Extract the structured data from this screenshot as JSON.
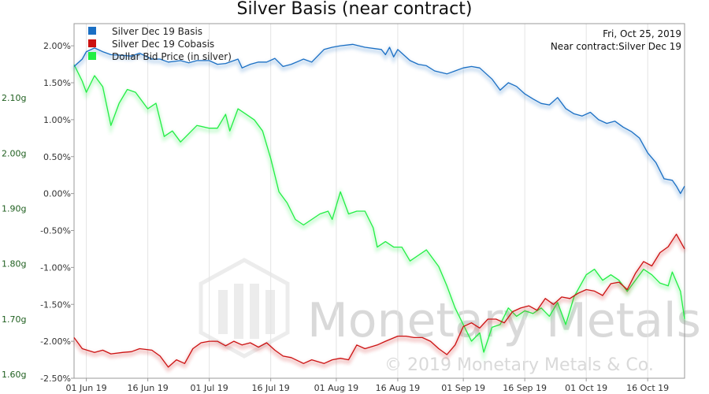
{
  "chart_data": {
    "type": "line",
    "title": "Silver Basis (near contract)",
    "annotation_date": "Fri, Oct 25, 2019",
    "annotation_contract": "Near contract:Silver Dec 19",
    "watermark_brand": "Monetary Metals",
    "watermark_copyright": "© 2019 Monetary Metals & Co.",
    "x_range": [
      "2019-05-29",
      "2019-10-25"
    ],
    "x_ticks": [
      {
        "date": "2019-06-01",
        "label": "01 Jun 19"
      },
      {
        "date": "2019-06-16",
        "label": "16 Jun 19"
      },
      {
        "date": "2019-07-01",
        "label": "01 Jul 19"
      },
      {
        "date": "2019-07-16",
        "label": "16 Jul 19"
      },
      {
        "date": "2019-08-01",
        "label": "01 Aug 19"
      },
      {
        "date": "2019-08-16",
        "label": "16 Aug 19"
      },
      {
        "date": "2019-09-01",
        "label": "01 Sep 19"
      },
      {
        "date": "2019-09-16",
        "label": "16 Sep 19"
      },
      {
        "date": "2019-10-01",
        "label": "01 Oct 19"
      },
      {
        "date": "2019-10-16",
        "label": "16 Oct 19"
      }
    ],
    "y_right": {
      "unit": "%",
      "range": [
        -2.5,
        2.3
      ],
      "ticks": [
        2.0,
        1.5,
        1.0,
        0.5,
        0.0,
        -0.5,
        -1.0,
        -1.5,
        -2.0,
        -2.5
      ],
      "tick_labels": [
        "2.00%",
        "1.50%",
        "1.00%",
        "0.50%",
        "0.00%",
        "-0.50%",
        "-1.00%",
        "-1.50%",
        "-2.00%",
        "-2.50%"
      ]
    },
    "y_left": {
      "unit": "g",
      "range": [
        1.593,
        2.234
      ],
      "ticks": [
        2.1,
        2.0,
        1.9,
        1.8,
        1.7,
        1.6
      ],
      "tick_labels": [
        "2.10g",
        "2.00g",
        "1.90g",
        "1.80g",
        "1.70g",
        "1.60g"
      ]
    },
    "legend_position": "top-left",
    "grid": "vertical",
    "series": [
      {
        "name": "Silver Dec 19 Basis",
        "color": "#1a6fc4",
        "axis": "right",
        "points": [
          [
            "2019-05-29",
            1.72
          ],
          [
            "2019-05-31",
            1.82
          ],
          [
            "2019-06-01",
            1.92
          ],
          [
            "2019-06-03",
            1.97
          ],
          [
            "2019-06-05",
            1.92
          ],
          [
            "2019-06-07",
            1.88
          ],
          [
            "2019-06-10",
            1.87
          ],
          [
            "2019-06-12",
            1.86
          ],
          [
            "2019-06-14",
            1.9
          ],
          [
            "2019-06-17",
            1.82
          ],
          [
            "2019-06-19",
            1.82
          ],
          [
            "2019-06-21",
            1.78
          ],
          [
            "2019-06-24",
            1.8
          ],
          [
            "2019-06-26",
            1.77
          ],
          [
            "2019-06-28",
            1.8
          ],
          [
            "2019-07-01",
            1.8
          ],
          [
            "2019-07-03",
            1.75
          ],
          [
            "2019-07-05",
            1.76
          ],
          [
            "2019-07-08",
            1.82
          ],
          [
            "2019-07-09",
            1.7
          ],
          [
            "2019-07-11",
            1.75
          ],
          [
            "2019-07-13",
            1.78
          ],
          [
            "2019-07-15",
            1.78
          ],
          [
            "2019-07-17",
            1.83
          ],
          [
            "2019-07-19",
            1.72
          ],
          [
            "2019-07-21",
            1.75
          ],
          [
            "2019-07-24",
            1.82
          ],
          [
            "2019-07-26",
            1.78
          ],
          [
            "2019-07-29",
            1.95
          ],
          [
            "2019-07-31",
            1.98
          ],
          [
            "2019-08-02",
            2.0
          ],
          [
            "2019-08-05",
            2.02
          ],
          [
            "2019-08-08",
            1.98
          ],
          [
            "2019-08-12",
            1.95
          ],
          [
            "2019-08-13",
            1.88
          ],
          [
            "2019-08-14",
            1.98
          ],
          [
            "2019-08-15",
            1.85
          ],
          [
            "2019-08-16",
            1.95
          ],
          [
            "2019-08-19",
            1.8
          ],
          [
            "2019-08-21",
            1.75
          ],
          [
            "2019-08-23",
            1.73
          ],
          [
            "2019-08-25",
            1.66
          ],
          [
            "2019-08-28",
            1.62
          ],
          [
            "2019-08-30",
            1.66
          ],
          [
            "2019-09-01",
            1.7
          ],
          [
            "2019-09-03",
            1.72
          ],
          [
            "2019-09-05",
            1.7
          ],
          [
            "2019-09-08",
            1.55
          ],
          [
            "2019-09-10",
            1.4
          ],
          [
            "2019-09-12",
            1.5
          ],
          [
            "2019-09-14",
            1.45
          ],
          [
            "2019-09-16",
            1.35
          ],
          [
            "2019-09-18",
            1.28
          ],
          [
            "2019-09-20",
            1.22
          ],
          [
            "2019-09-22",
            1.2
          ],
          [
            "2019-09-24",
            1.3
          ],
          [
            "2019-09-26",
            1.15
          ],
          [
            "2019-09-28",
            1.08
          ],
          [
            "2019-09-30",
            1.05
          ],
          [
            "2019-10-02",
            1.1
          ],
          [
            "2019-10-04",
            1.0
          ],
          [
            "2019-10-06",
            0.95
          ],
          [
            "2019-10-08",
            0.98
          ],
          [
            "2019-10-10",
            0.9
          ],
          [
            "2019-10-12",
            0.84
          ],
          [
            "2019-10-14",
            0.75
          ],
          [
            "2019-10-16",
            0.55
          ],
          [
            "2019-10-18",
            0.42
          ],
          [
            "2019-10-20",
            0.2
          ],
          [
            "2019-10-22",
            0.18
          ],
          [
            "2019-10-23",
            0.1
          ],
          [
            "2019-10-24",
            0.0
          ],
          [
            "2019-10-25",
            0.1
          ]
        ]
      },
      {
        "name": "Silver Dec 19 Cobasis",
        "color": "#cc1111",
        "axis": "right",
        "points": [
          [
            "2019-05-29",
            -1.95
          ],
          [
            "2019-05-31",
            -2.1
          ],
          [
            "2019-06-03",
            -2.15
          ],
          [
            "2019-06-05",
            -2.12
          ],
          [
            "2019-06-07",
            -2.17
          ],
          [
            "2019-06-10",
            -2.15
          ],
          [
            "2019-06-12",
            -2.14
          ],
          [
            "2019-06-14",
            -2.1
          ],
          [
            "2019-06-17",
            -2.12
          ],
          [
            "2019-06-19",
            -2.2
          ],
          [
            "2019-06-21",
            -2.35
          ],
          [
            "2019-06-23",
            -2.25
          ],
          [
            "2019-06-25",
            -2.3
          ],
          [
            "2019-06-27",
            -2.1
          ],
          [
            "2019-06-29",
            -2.02
          ],
          [
            "2019-07-01",
            -2.0
          ],
          [
            "2019-07-03",
            -2.0
          ],
          [
            "2019-07-05",
            -2.06
          ],
          [
            "2019-07-07",
            -2.0
          ],
          [
            "2019-07-09",
            -2.05
          ],
          [
            "2019-07-11",
            -2.02
          ],
          [
            "2019-07-13",
            -2.08
          ],
          [
            "2019-07-15",
            -2.02
          ],
          [
            "2019-07-17",
            -2.12
          ],
          [
            "2019-07-19",
            -2.2
          ],
          [
            "2019-07-21",
            -2.22
          ],
          [
            "2019-07-24",
            -2.3
          ],
          [
            "2019-07-26",
            -2.25
          ],
          [
            "2019-07-29",
            -2.3
          ],
          [
            "2019-07-31",
            -2.25
          ],
          [
            "2019-08-02",
            -2.23
          ],
          [
            "2019-08-04",
            -2.25
          ],
          [
            "2019-08-06",
            -2.05
          ],
          [
            "2019-08-08",
            -2.1
          ],
          [
            "2019-08-11",
            -2.05
          ],
          [
            "2019-08-13",
            -2.0
          ],
          [
            "2019-08-16",
            -1.93
          ],
          [
            "2019-08-18",
            -1.93
          ],
          [
            "2019-08-20",
            -1.95
          ],
          [
            "2019-08-22",
            -1.95
          ],
          [
            "2019-08-24",
            -2.0
          ],
          [
            "2019-08-26",
            -2.1
          ],
          [
            "2019-08-28",
            -2.18
          ],
          [
            "2019-08-30",
            -2.05
          ],
          [
            "2019-09-01",
            -1.8
          ],
          [
            "2019-09-03",
            -1.75
          ],
          [
            "2019-09-05",
            -1.82
          ],
          [
            "2019-09-07",
            -1.7
          ],
          [
            "2019-09-09",
            -1.7
          ],
          [
            "2019-09-11",
            -1.75
          ],
          [
            "2019-09-13",
            -1.6
          ],
          [
            "2019-09-15",
            -1.55
          ],
          [
            "2019-09-17",
            -1.52
          ],
          [
            "2019-09-19",
            -1.58
          ],
          [
            "2019-09-21",
            -1.42
          ],
          [
            "2019-09-23",
            -1.5
          ],
          [
            "2019-09-25",
            -1.4
          ],
          [
            "2019-09-27",
            -1.42
          ],
          [
            "2019-09-29",
            -1.35
          ],
          [
            "2019-10-01",
            -1.3
          ],
          [
            "2019-10-03",
            -1.32
          ],
          [
            "2019-10-05",
            -1.38
          ],
          [
            "2019-10-07",
            -1.22
          ],
          [
            "2019-10-09",
            -1.2
          ],
          [
            "2019-10-11",
            -1.3
          ],
          [
            "2019-10-13",
            -1.08
          ],
          [
            "2019-10-15",
            -0.92
          ],
          [
            "2019-10-17",
            -0.98
          ],
          [
            "2019-10-19",
            -0.8
          ],
          [
            "2019-10-21",
            -0.72
          ],
          [
            "2019-10-23",
            -0.55
          ],
          [
            "2019-10-25",
            -0.75
          ]
        ]
      },
      {
        "name": "Dollar Bid Price (in silver)",
        "color": "#22ee44",
        "axis": "left",
        "points": [
          [
            "2019-05-29",
            2.16
          ],
          [
            "2019-05-31",
            2.13
          ],
          [
            "2019-06-01",
            2.11
          ],
          [
            "2019-06-03",
            2.14
          ],
          [
            "2019-06-05",
            2.12
          ],
          [
            "2019-06-07",
            2.05
          ],
          [
            "2019-06-09",
            2.09
          ],
          [
            "2019-06-11",
            2.115
          ],
          [
            "2019-06-13",
            2.11
          ],
          [
            "2019-06-16",
            2.08
          ],
          [
            "2019-06-18",
            2.09
          ],
          [
            "2019-06-20",
            2.03
          ],
          [
            "2019-06-22",
            2.04
          ],
          [
            "2019-06-24",
            2.02
          ],
          [
            "2019-06-26",
            2.035
          ],
          [
            "2019-06-28",
            2.05
          ],
          [
            "2019-07-01",
            2.045
          ],
          [
            "2019-07-03",
            2.045
          ],
          [
            "2019-07-05",
            2.07
          ],
          [
            "2019-07-06",
            2.04
          ],
          [
            "2019-07-08",
            2.08
          ],
          [
            "2019-07-10",
            2.07
          ],
          [
            "2019-07-12",
            2.06
          ],
          [
            "2019-07-14",
            2.04
          ],
          [
            "2019-07-16",
            1.99
          ],
          [
            "2019-07-18",
            1.93
          ],
          [
            "2019-07-20",
            1.91
          ],
          [
            "2019-07-22",
            1.88
          ],
          [
            "2019-07-24",
            1.87
          ],
          [
            "2019-07-26",
            1.88
          ],
          [
            "2019-07-28",
            1.89
          ],
          [
            "2019-07-30",
            1.895
          ],
          [
            "2019-07-31",
            1.88
          ],
          [
            "2019-08-02",
            1.93
          ],
          [
            "2019-08-04",
            1.89
          ],
          [
            "2019-08-06",
            1.895
          ],
          [
            "2019-08-08",
            1.895
          ],
          [
            "2019-08-10",
            1.865
          ],
          [
            "2019-08-11",
            1.83
          ],
          [
            "2019-08-13",
            1.84
          ],
          [
            "2019-08-15",
            1.83
          ],
          [
            "2019-08-17",
            1.83
          ],
          [
            "2019-08-19",
            1.805
          ],
          [
            "2019-08-21",
            1.815
          ],
          [
            "2019-08-23",
            1.825
          ],
          [
            "2019-08-26",
            1.795
          ],
          [
            "2019-08-28",
            1.76
          ],
          [
            "2019-08-30",
            1.72
          ],
          [
            "2019-09-01",
            1.69
          ],
          [
            "2019-09-03",
            1.66
          ],
          [
            "2019-09-05",
            1.675
          ],
          [
            "2019-09-06",
            1.64
          ],
          [
            "2019-09-08",
            1.685
          ],
          [
            "2019-09-10",
            1.69
          ],
          [
            "2019-09-12",
            1.72
          ],
          [
            "2019-09-14",
            1.705
          ],
          [
            "2019-09-16",
            1.715
          ],
          [
            "2019-09-18",
            1.71
          ],
          [
            "2019-09-20",
            1.72
          ],
          [
            "2019-09-22",
            1.705
          ],
          [
            "2019-09-24",
            1.73
          ],
          [
            "2019-09-26",
            1.69
          ],
          [
            "2019-09-28",
            1.74
          ],
          [
            "2019-10-01",
            1.78
          ],
          [
            "2019-10-03",
            1.79
          ],
          [
            "2019-10-05",
            1.77
          ],
          [
            "2019-10-07",
            1.78
          ],
          [
            "2019-10-09",
            1.77
          ],
          [
            "2019-10-11",
            1.75
          ],
          [
            "2019-10-13",
            1.77
          ],
          [
            "2019-10-15",
            1.79
          ],
          [
            "2019-10-17",
            1.78
          ],
          [
            "2019-10-19",
            1.765
          ],
          [
            "2019-10-21",
            1.76
          ],
          [
            "2019-10-22",
            1.785
          ],
          [
            "2019-10-24",
            1.75
          ],
          [
            "2019-10-25",
            1.7
          ]
        ]
      }
    ]
  }
}
